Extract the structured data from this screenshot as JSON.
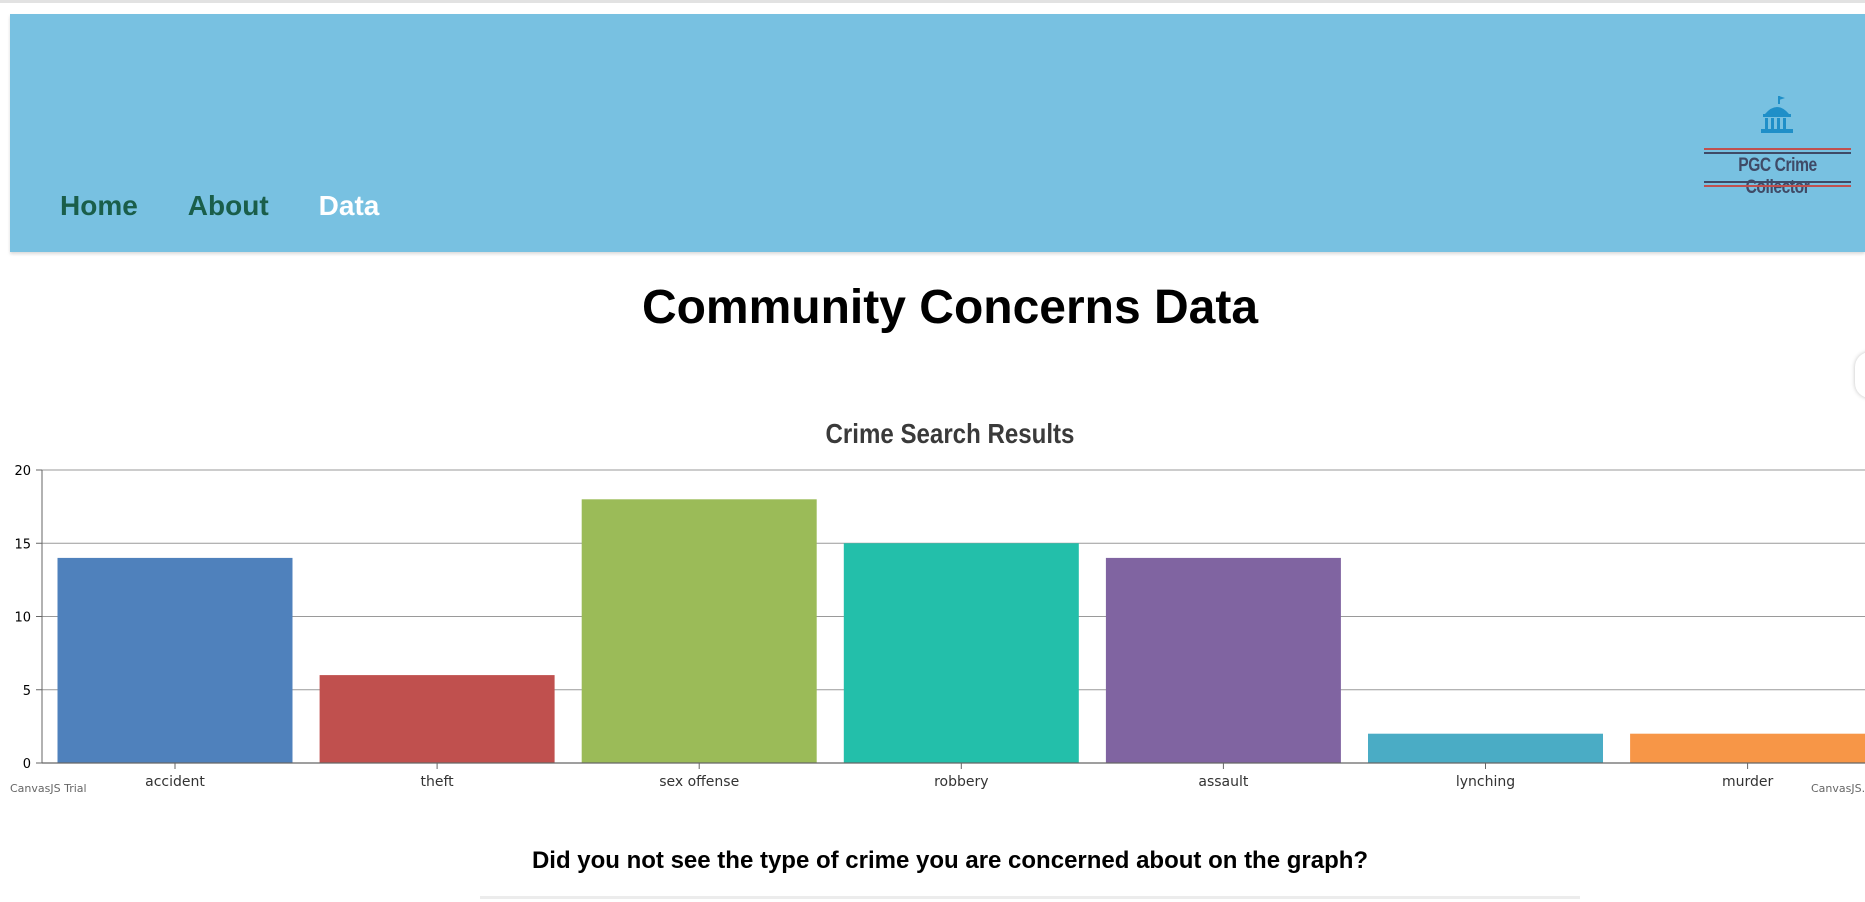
{
  "nav": {
    "items": [
      {
        "label": "Home",
        "active": false
      },
      {
        "label": "About",
        "active": false
      },
      {
        "label": "Data",
        "active": true
      }
    ]
  },
  "logo": {
    "text": "PGC Crime Collector",
    "icon": "capitol-building-icon"
  },
  "page": {
    "title": "Community Concerns Data",
    "question": "Did you not see the type of crime you are concerned about on the graph?"
  },
  "colors": {
    "header_bg": "#78c1e1",
    "nav_text": "#1a5e4a",
    "nav_active": "#ffffff"
  },
  "chart_data": {
    "type": "bar",
    "title": "Crime Search Results",
    "categories": [
      "accident",
      "theft",
      "sex offense",
      "robbery",
      "assault",
      "lynching",
      "murder"
    ],
    "values": [
      14,
      6,
      18,
      15,
      14,
      2,
      2
    ],
    "colors": [
      "#4f81bc",
      "#c0504e",
      "#9bbb58",
      "#23bfaa",
      "#8064a1",
      "#4aacc5",
      "#f79647"
    ],
    "y_ticks": [
      0,
      5,
      10,
      15,
      20
    ],
    "ylim": [
      0,
      20
    ],
    "grid": true,
    "watermark_left": "CanvasJS Trial",
    "watermark_right": "CanvasJS.com"
  }
}
